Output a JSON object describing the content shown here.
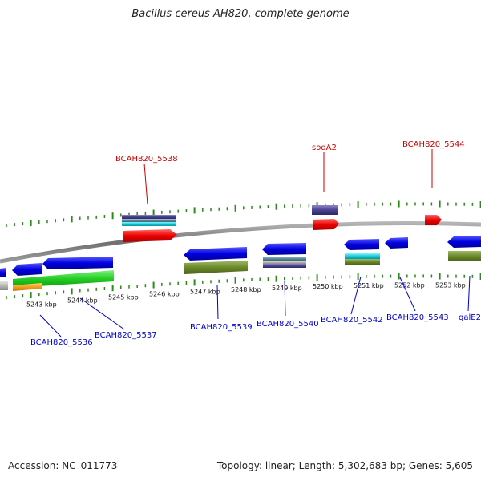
{
  "title": "Bacillus cereus AH820, complete genome",
  "footer": {
    "accession": "Accession: NC_011773",
    "summary": "Topology: linear; Length: 5,302,683 bp; Genes: 5,605"
  },
  "colors": {
    "forward_label": "#cc0000",
    "reverse_label": "#0000cc",
    "tick": "#2a8a1a",
    "backbone": "#8a8a8a"
  },
  "tick_labels": [
    "5243 kbp",
    "5244 kbp",
    "5245 kbp",
    "5246 kbp",
    "5247 kbp",
    "5248 kbp",
    "5249 kbp",
    "5250 kbp",
    "5251 kbp",
    "5252 kbp",
    "5253 kbp"
  ],
  "forward_genes": [
    "BCAH820_5538",
    "sodA2",
    "BCAH820_5544"
  ],
  "reverse_genes": [
    "BCAH820_5536",
    "BCAH820_5537",
    "BCAH820_5539",
    "BCAH820_5540",
    "BCAH820_5542",
    "BCAH820_5543",
    "galE2"
  ]
}
